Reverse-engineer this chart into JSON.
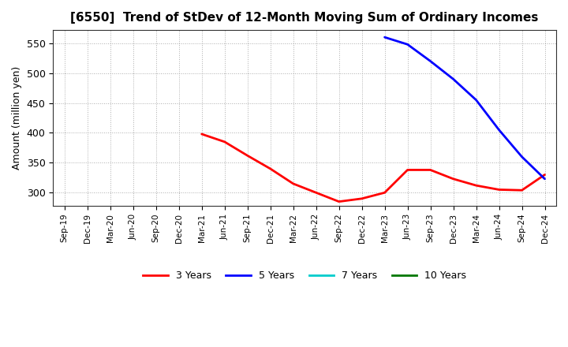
{
  "title": "[6550]  Trend of StDev of 12-Month Moving Sum of Ordinary Incomes",
  "ylabel": "Amount (million yen)",
  "background_color": "#ffffff",
  "grid_color": "#999999",
  "ylim": [
    278,
    572
  ],
  "yticks": [
    300,
    350,
    400,
    450,
    500,
    550
  ],
  "x_labels": [
    "Sep-19",
    "Dec-19",
    "Mar-20",
    "Jun-20",
    "Sep-20",
    "Dec-20",
    "Mar-21",
    "Jun-21",
    "Sep-21",
    "Dec-21",
    "Mar-22",
    "Jun-22",
    "Sep-22",
    "Dec-22",
    "Mar-23",
    "Jun-23",
    "Sep-23",
    "Dec-23",
    "Mar-24",
    "Jun-24",
    "Sep-24",
    "Dec-24"
  ],
  "series_3y": {
    "color": "#ff0000",
    "points_x": [
      6,
      7,
      8,
      9,
      10,
      11,
      12,
      13,
      14,
      15,
      16,
      17,
      18,
      19,
      20,
      21
    ],
    "points_y": [
      398,
      385,
      362,
      340,
      315,
      300,
      285,
      290,
      300,
      338,
      338,
      323,
      312,
      305,
      304,
      330
    ]
  },
  "series_5y": {
    "color": "#0000ff",
    "points_x": [
      14,
      15,
      16,
      17,
      18,
      19,
      20,
      21
    ],
    "points_y": [
      560,
      548,
      520,
      490,
      455,
      405,
      360,
      323
    ]
  },
  "series_7y": {
    "color": "#00cccc",
    "points_x": [],
    "points_y": []
  },
  "series_10y": {
    "color": "#007700",
    "points_x": [],
    "points_y": []
  },
  "legend": [
    {
      "label": "3 Years",
      "color": "#ff0000"
    },
    {
      "label": "5 Years",
      "color": "#0000ff"
    },
    {
      "label": "7 Years",
      "color": "#00cccc"
    },
    {
      "label": "10 Years",
      "color": "#007700"
    }
  ]
}
